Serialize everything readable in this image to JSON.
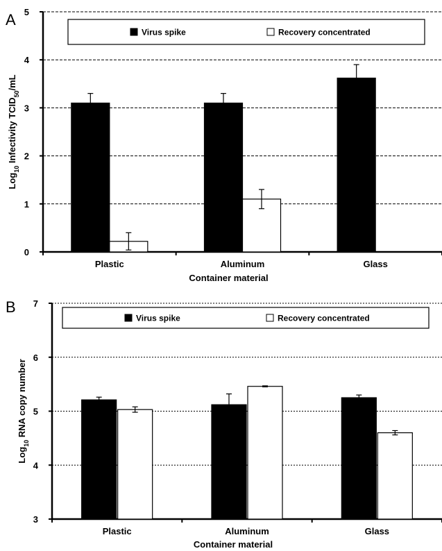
{
  "chart_data": [
    {
      "panel_label": "A",
      "type": "bar",
      "ylabel": "Log10 Infectivity TCID50/mL",
      "xlabel": "Container material",
      "categories": [
        "Plastic",
        "Aluminum",
        "Glass"
      ],
      "ylim": [
        0,
        5
      ],
      "yticks": [
        "0",
        "1",
        "2",
        "3",
        "4",
        "5"
      ],
      "grid": "dashed horizontal",
      "legend_position": "top",
      "series": [
        {
          "name": "Virus spike",
          "color": "#000000",
          "values": [
            3.1,
            3.1,
            3.62
          ],
          "errors": [
            0.2,
            0.2,
            0.28
          ]
        },
        {
          "name": "Recovery concentrated",
          "color": "#ffffff",
          "values": [
            0.22,
            1.1,
            null
          ],
          "errors": [
            0.18,
            0.2,
            null
          ]
        }
      ]
    },
    {
      "panel_label": "B",
      "type": "bar",
      "ylabel": "Log10 RNA copy number",
      "xlabel": "Container material",
      "categories": [
        "Plastic",
        "Aluminum",
        "Glass"
      ],
      "ylim": [
        3,
        7
      ],
      "yticks": [
        "3",
        "4",
        "5",
        "6",
        "7"
      ],
      "grid": "dotted horizontal",
      "legend_position": "top",
      "series": [
        {
          "name": "Virus spike",
          "color": "#000000",
          "values": [
            5.21,
            5.12,
            5.25
          ],
          "errors": [
            0.05,
            0.2,
            0.05
          ]
        },
        {
          "name": "Recovery concentrated",
          "color": "#ffffff",
          "values": [
            5.03,
            5.46,
            4.6
          ],
          "errors": [
            0.05,
            0.01,
            0.04
          ]
        }
      ]
    }
  ]
}
